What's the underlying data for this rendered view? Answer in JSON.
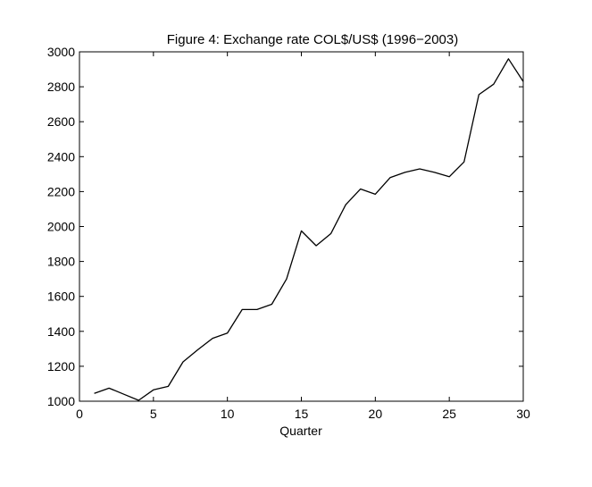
{
  "chart_data": {
    "type": "line",
    "title": "Figure 4: Exchange rate COL$/US$ (1996−2003)",
    "xlabel": "Quarter",
    "ylabel": "",
    "xlim": [
      0,
      30
    ],
    "ylim": [
      1000,
      3000
    ],
    "xticks": [
      0,
      5,
      10,
      15,
      20,
      25,
      30
    ],
    "yticks": [
      1000,
      1200,
      1400,
      1600,
      1800,
      2000,
      2200,
      2400,
      2600,
      2800,
      3000
    ],
    "grid": false,
    "series": [
      {
        "color": "#000000",
        "x": [
          1,
          2,
          3,
          4,
          5,
          6,
          7,
          8,
          9,
          10,
          11,
          12,
          13,
          14,
          15,
          16,
          17,
          18,
          19,
          20,
          21,
          22,
          23,
          24,
          25,
          26,
          27,
          28,
          29,
          30
        ],
        "y": [
          1045,
          1075,
          1040,
          1005,
          1065,
          1085,
          1225,
          1295,
          1360,
          1390,
          1525,
          1525,
          1555,
          1700,
          1975,
          1890,
          1960,
          2125,
          2215,
          2185,
          2280,
          2310,
          2330,
          2310,
          2285,
          2370,
          2755,
          2815,
          2960,
          2830
        ]
      }
    ]
  }
}
